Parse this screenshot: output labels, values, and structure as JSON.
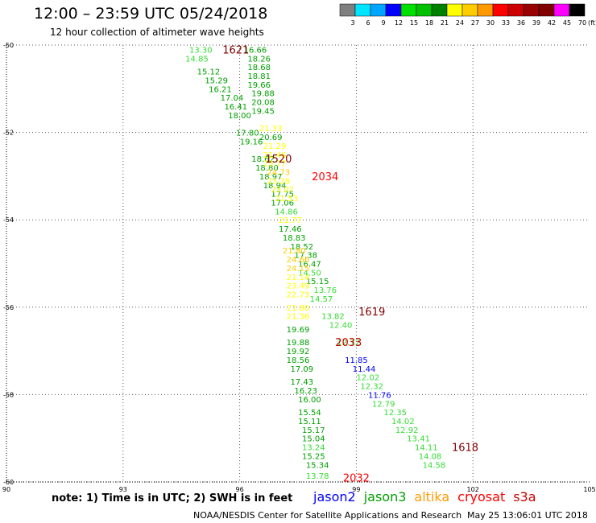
{
  "header": {
    "title": "12:00 – 23:59 UTC 05/24/2018",
    "subtitle": "12 hour collection of altimeter wave heights"
  },
  "colorbar": {
    "labels": [
      "3",
      "6",
      "9",
      "12",
      "15",
      "18",
      "21",
      "24",
      "27",
      "30",
      "33",
      "36",
      "39",
      "42",
      "45",
      "70"
    ],
    "unit": "(ft)",
    "colors": [
      "#7f7f7f",
      "#00e5ff",
      "#00a5ff",
      "#0000ff",
      "#00e000",
      "#00c000",
      "#008000",
      "#ffff00",
      "#ffcc00",
      "#ff9900",
      "#ff0000",
      "#cc0000",
      "#990000",
      "#800000",
      "#ff00ff",
      "#000000"
    ]
  },
  "footer": {
    "note": "note:  1) Time is in UTC;  2) SWH is in feet",
    "satellites": [
      {
        "name": "jason2",
        "color": "#0000ff"
      },
      {
        "name": "jason3",
        "color": "#00a000"
      },
      {
        "name": "altika",
        "color": "#ff9900"
      },
      {
        "name": "cryosat",
        "color": "#ff0000"
      },
      {
        "name": "s3a",
        "color": "#cc0000"
      }
    ],
    "credit": "NOAA/NESDIS Center for Satellite Applications and Research",
    "timestamp": "May 25 13:06:01 UTC 2018"
  },
  "chart_data": {
    "type": "scatter",
    "title": "12:00 – 23:59 UTC 05/24/2018",
    "subtitle": "12 hour collection of altimeter wave heights",
    "xlim": [
      90,
      105
    ],
    "ylim": [
      -60,
      -50
    ],
    "x_ticks": [
      "90",
      "93",
      "96",
      "99",
      "102",
      "105"
    ],
    "y_ticks": [
      "-50",
      "-52",
      "-54",
      "-56",
      "-58",
      "-60"
    ],
    "grid": true,
    "points": [
      {
        "lon": 95.0,
        "lat": -50.1,
        "text": "13.30",
        "color": "#33dd33"
      },
      {
        "lon": 94.9,
        "lat": -50.3,
        "text": "14.85",
        "color": "#33dd33"
      },
      {
        "lon": 95.2,
        "lat": -50.6,
        "text": "15.12",
        "color": "#00a000"
      },
      {
        "lon": 95.4,
        "lat": -50.8,
        "text": "15.29",
        "color": "#00a000"
      },
      {
        "lon": 95.5,
        "lat": -51.0,
        "text": "16.21",
        "color": "#00a000"
      },
      {
        "lon": 95.8,
        "lat": -51.2,
        "text": "17.04",
        "color": "#00a000"
      },
      {
        "lon": 95.9,
        "lat": -51.4,
        "text": "16.41",
        "color": "#00a000"
      },
      {
        "lon": 96.0,
        "lat": -51.6,
        "text": "18.00",
        "color": "#00a000"
      },
      {
        "lon": 96.2,
        "lat": -52.0,
        "text": "17.80",
        "color": "#00a000"
      },
      {
        "lon": 96.3,
        "lat": -52.2,
        "text": "19.16",
        "color": "#00a000"
      },
      {
        "lon": 96.6,
        "lat": -52.6,
        "text": "18.62",
        "color": "#00a000"
      },
      {
        "lon": 96.7,
        "lat": -52.8,
        "text": "18.80",
        "color": "#00a000"
      },
      {
        "lon": 96.8,
        "lat": -53.0,
        "text": "18.97",
        "color": "#00a000"
      },
      {
        "lon": 96.9,
        "lat": -53.2,
        "text": "18.94",
        "color": "#00a000"
      },
      {
        "lon": 97.1,
        "lat": -53.4,
        "text": "17.75",
        "color": "#00a000"
      },
      {
        "lon": 97.1,
        "lat": -53.6,
        "text": "17.06",
        "color": "#00a000"
      },
      {
        "lon": 97.2,
        "lat": -53.8,
        "text": "14.86",
        "color": "#33dd33"
      },
      {
        "lon": 97.3,
        "lat": -54.2,
        "text": "17.46",
        "color": "#00a000"
      },
      {
        "lon": 97.4,
        "lat": -54.4,
        "text": "18.83",
        "color": "#00a000"
      },
      {
        "lon": 97.6,
        "lat": -54.6,
        "text": "18.52",
        "color": "#00a000"
      },
      {
        "lon": 97.7,
        "lat": -54.8,
        "text": "17.38",
        "color": "#00a000"
      },
      {
        "lon": 97.8,
        "lat": -55.0,
        "text": "16.47",
        "color": "#00a000"
      },
      {
        "lon": 97.8,
        "lat": -55.2,
        "text": "14.50",
        "color": "#33dd33"
      },
      {
        "lon": 98.0,
        "lat": -55.4,
        "text": "15.15",
        "color": "#00a000"
      },
      {
        "lon": 98.2,
        "lat": -55.6,
        "text": "13.76",
        "color": "#33dd33"
      },
      {
        "lon": 98.1,
        "lat": -55.8,
        "text": "14.57",
        "color": "#33dd33"
      },
      {
        "lon": 98.4,
        "lat": -56.2,
        "text": "13.82",
        "color": "#33dd33"
      },
      {
        "lon": 98.6,
        "lat": -56.4,
        "text": "12.40",
        "color": "#33dd33"
      },
      {
        "lon": 98.8,
        "lat": -56.8,
        "text": "12.72",
        "color": "#33dd33"
      },
      {
        "lon": 99.0,
        "lat": -57.2,
        "text": "11.85",
        "color": "#0000ff"
      },
      {
        "lon": 99.2,
        "lat": -57.4,
        "text": "11.44",
        "color": "#0000ff"
      },
      {
        "lon": 99.3,
        "lat": -57.6,
        "text": "12.02",
        "color": "#33dd33"
      },
      {
        "lon": 99.4,
        "lat": -57.8,
        "text": "12.32",
        "color": "#33dd33"
      },
      {
        "lon": 99.6,
        "lat": -58.0,
        "text": "11.76",
        "color": "#0000ff"
      },
      {
        "lon": 99.7,
        "lat": -58.2,
        "text": "12.79",
        "color": "#33dd33"
      },
      {
        "lon": 100.0,
        "lat": -58.4,
        "text": "12.35",
        "color": "#33dd33"
      },
      {
        "lon": 100.2,
        "lat": -58.6,
        "text": "14.02",
        "color": "#33dd33"
      },
      {
        "lon": 100.3,
        "lat": -58.8,
        "text": "12.92",
        "color": "#33dd33"
      },
      {
        "lon": 100.6,
        "lat": -59.0,
        "text": "13.41",
        "color": "#33dd33"
      },
      {
        "lon": 100.8,
        "lat": -59.2,
        "text": "14.11",
        "color": "#33dd33"
      },
      {
        "lon": 100.9,
        "lat": -59.4,
        "text": "14.08",
        "color": "#33dd33"
      },
      {
        "lon": 101.0,
        "lat": -59.6,
        "text": "14.58",
        "color": "#33dd33"
      },
      {
        "lon": 96.4,
        "lat": -50.1,
        "text": "16.66",
        "color": "#00a000"
      },
      {
        "lon": 96.5,
        "lat": -50.3,
        "text": "18.26",
        "color": "#00a000"
      },
      {
        "lon": 96.5,
        "lat": -50.5,
        "text": "18.68",
        "color": "#00a000"
      },
      {
        "lon": 96.5,
        "lat": -50.7,
        "text": "18.81",
        "color": "#00a000"
      },
      {
        "lon": 96.5,
        "lat": -50.9,
        "text": "19.66",
        "color": "#00a000"
      },
      {
        "lon": 96.6,
        "lat": -51.1,
        "text": "19.88",
        "color": "#00a000"
      },
      {
        "lon": 96.6,
        "lat": -51.3,
        "text": "20.08",
        "color": "#00a000"
      },
      {
        "lon": 96.6,
        "lat": -51.5,
        "text": "19.45",
        "color": "#00a000"
      },
      {
        "lon": 96.8,
        "lat": -51.9,
        "text": "21.33",
        "color": "#ffff00"
      },
      {
        "lon": 96.8,
        "lat": -52.1,
        "text": "20.69",
        "color": "#00a000"
      },
      {
        "lon": 96.9,
        "lat": -52.3,
        "text": "21.29",
        "color": "#ffff00"
      },
      {
        "lon": 96.9,
        "lat": -52.5,
        "text": "21.46",
        "color": "#ffff00"
      },
      {
        "lon": 96.9,
        "lat": -52.7,
        "text": "23.77",
        "color": "#ffff00"
      },
      {
        "lon": 97.0,
        "lat": -52.9,
        "text": "24.73",
        "color": "#ffcc00"
      },
      {
        "lon": 97.0,
        "lat": -53.1,
        "text": "23.28",
        "color": "#ffff00"
      },
      {
        "lon": 97.1,
        "lat": -53.3,
        "text": "23.07",
        "color": "#ffff00"
      },
      {
        "lon": 97.2,
        "lat": -53.5,
        "text": "21.53",
        "color": "#ffff00"
      },
      {
        "lon": 97.3,
        "lat": -54.0,
        "text": "21.77",
        "color": "#ffff00"
      },
      {
        "lon": 97.5,
        "lat": -54.9,
        "text": "24.66",
        "color": "#ffcc00"
      },
      {
        "lon": 97.4,
        "lat": -54.7,
        "text": "21.90",
        "color": "#ffcc00"
      },
      {
        "lon": 97.5,
        "lat": -55.1,
        "text": "24.15",
        "color": "#ffcc00"
      },
      {
        "lon": 97.5,
        "lat": -55.3,
        "text": "21.14",
        "color": "#ffff00"
      },
      {
        "lon": 97.5,
        "lat": -55.5,
        "text": "23.49",
        "color": "#ffff00"
      },
      {
        "lon": 97.5,
        "lat": -55.7,
        "text": "22.73",
        "color": "#ffff00"
      },
      {
        "lon": 97.5,
        "lat": -56.0,
        "text": "21.80",
        "color": "#ffff00"
      },
      {
        "lon": 97.5,
        "lat": -56.2,
        "text": "21.36",
        "color": "#ffff00"
      },
      {
        "lon": 97.5,
        "lat": -56.5,
        "text": "19.69",
        "color": "#00a000"
      },
      {
        "lon": 97.5,
        "lat": -56.8,
        "text": "19.88",
        "color": "#00a000"
      },
      {
        "lon": 97.5,
        "lat": -57.0,
        "text": "19.92",
        "color": "#00a000"
      },
      {
        "lon": 97.5,
        "lat": -57.2,
        "text": "18.56",
        "color": "#00a000"
      },
      {
        "lon": 97.6,
        "lat": -57.4,
        "text": "17.09",
        "color": "#00a000"
      },
      {
        "lon": 97.6,
        "lat": -57.7,
        "text": "17.43",
        "color": "#00a000"
      },
      {
        "lon": 97.7,
        "lat": -57.9,
        "text": "16.23",
        "color": "#00a000"
      },
      {
        "lon": 97.8,
        "lat": -58.1,
        "text": "16.00",
        "color": "#00a000"
      },
      {
        "lon": 97.8,
        "lat": -58.4,
        "text": "15.54",
        "color": "#00a000"
      },
      {
        "lon": 97.8,
        "lat": -58.6,
        "text": "15.11",
        "color": "#00a000"
      },
      {
        "lon": 97.9,
        "lat": -58.8,
        "text": "15.17",
        "color": "#00a000"
      },
      {
        "lon": 97.9,
        "lat": -59.0,
        "text": "15.04",
        "color": "#00a000"
      },
      {
        "lon": 97.9,
        "lat": -59.2,
        "text": "13.24",
        "color": "#33dd33"
      },
      {
        "lon": 97.9,
        "lat": -59.4,
        "text": "15.25",
        "color": "#00a000"
      },
      {
        "lon": 98.0,
        "lat": -59.6,
        "text": "15.34",
        "color": "#00a000"
      },
      {
        "lon": 98.0,
        "lat": -59.85,
        "text": "13.78",
        "color": "#33dd33"
      }
    ],
    "pass_labels": [
      {
        "lon": 95.9,
        "lat": -50.1,
        "text": "1621",
        "color": "#800000"
      },
      {
        "lon": 97.0,
        "lat": -52.6,
        "text": "1520",
        "color": "#800000"
      },
      {
        "lon": 98.2,
        "lat": -53.0,
        "text": "2034",
        "color": "#ff0000"
      },
      {
        "lon": 99.4,
        "lat": -56.1,
        "text": "1619",
        "color": "#800000"
      },
      {
        "lon": 98.8,
        "lat": -56.8,
        "text": "2033",
        "color": "#cc0000"
      },
      {
        "lon": 101.8,
        "lat": -59.2,
        "text": "1618",
        "color": "#800000"
      },
      {
        "lon": 99.0,
        "lat": -59.9,
        "text": "2032",
        "color": "#ff0000"
      }
    ]
  }
}
